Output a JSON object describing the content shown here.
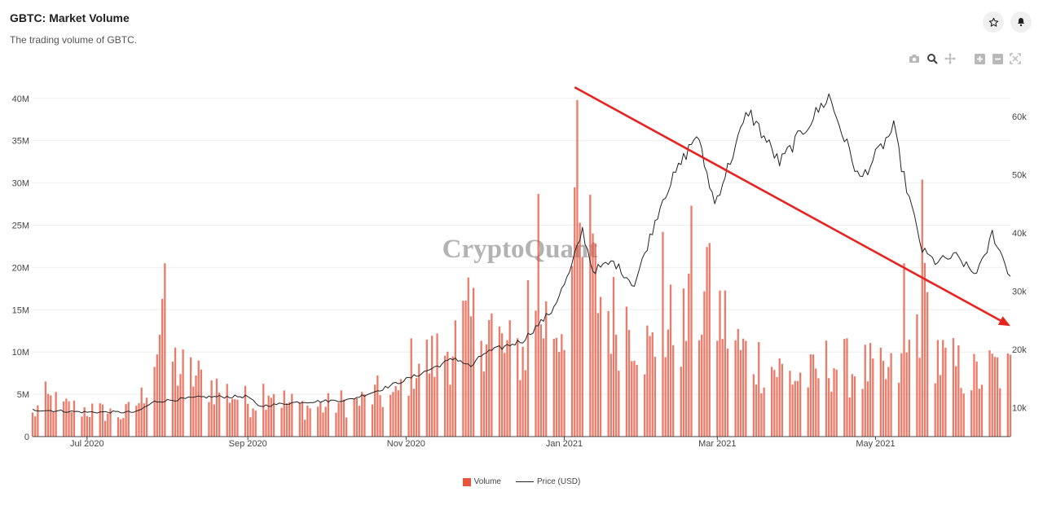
{
  "header": {
    "title": "GBTC: Market Volume",
    "subtitle": "The trading volume of GBTC."
  },
  "icons": {
    "favorite": "star-icon",
    "notify": "bell-icon",
    "camera": "camera-icon",
    "zoom": "zoom-icon",
    "pan": "pan-icon",
    "zoom_in": "plus-icon",
    "zoom_out": "minus-icon",
    "autoscale": "autoscale-icon"
  },
  "watermark": "CryptoQuant",
  "legend": {
    "volume": "Volume",
    "price": "Price (USD)"
  },
  "chart_data": {
    "type": "bar",
    "colors": {
      "volume": "#e6553f",
      "price": "#222222",
      "trend_arrow": "#e8231f"
    },
    "x_axis": {
      "start": "2020-06-10",
      "end": "2021-06-22",
      "ticks": [
        {
          "date": "2020-07-01",
          "label": "Jul 2020"
        },
        {
          "date": "2020-09-01",
          "label": "Sep 2020"
        },
        {
          "date": "2020-11-01",
          "label": "Nov 2020"
        },
        {
          "date": "2021-01-01",
          "label": "Jan 2021"
        },
        {
          "date": "2021-03-01",
          "label": "Mar 2021"
        },
        {
          "date": "2021-05-01",
          "label": "May 2021"
        }
      ]
    },
    "y_axis_left": {
      "range": [
        0,
        42000000
      ],
      "ticks": [
        {
          "v": 0,
          "label": "0"
        },
        {
          "v": 5000000,
          "label": "5M"
        },
        {
          "v": 10000000,
          "label": "10M"
        },
        {
          "v": 15000000,
          "label": "15M"
        },
        {
          "v": 20000000,
          "label": "20M"
        },
        {
          "v": 25000000,
          "label": "25M"
        },
        {
          "v": 30000000,
          "label": "30M"
        },
        {
          "v": 35000000,
          "label": "35M"
        },
        {
          "v": 40000000,
          "label": "40M"
        }
      ]
    },
    "y_axis_right": {
      "range": [
        5000,
        66000
      ],
      "ticks": [
        {
          "v": 10000,
          "label": "10k"
        },
        {
          "v": 20000,
          "label": "20k"
        },
        {
          "v": 30000,
          "label": "30k"
        },
        {
          "v": 40000,
          "label": "40k"
        },
        {
          "v": 50000,
          "label": "50k"
        },
        {
          "v": 60000,
          "label": "60k"
        }
      ]
    },
    "grid": true,
    "legend_position": "bottom-center",
    "volume_anchors": [
      [
        "2020-06-10",
        2.5
      ],
      [
        "2020-06-15",
        4.5
      ],
      [
        "2020-06-22",
        3.5
      ],
      [
        "2020-07-01",
        3.2
      ],
      [
        "2020-07-15",
        2.5
      ],
      [
        "2020-07-22",
        4.5
      ],
      [
        "2020-07-29",
        12
      ],
      [
        "2020-08-05",
        8
      ],
      [
        "2020-08-12",
        7
      ],
      [
        "2020-08-19",
        6
      ],
      [
        "2020-08-26",
        5
      ],
      [
        "2020-09-02",
        4
      ],
      [
        "2020-09-09",
        6
      ],
      [
        "2020-09-16",
        4
      ],
      [
        "2020-09-23",
        3.5
      ],
      [
        "2020-09-30",
        3.5
      ],
      [
        "2020-10-07",
        4
      ],
      [
        "2020-10-14",
        4
      ],
      [
        "2020-10-21",
        5
      ],
      [
        "2020-10-28",
        4.5
      ],
      [
        "2020-11-04",
        9
      ],
      [
        "2020-11-11",
        9
      ],
      [
        "2020-11-18",
        11
      ],
      [
        "2020-11-25",
        13
      ],
      [
        "2020-12-02",
        14
      ],
      [
        "2020-12-09",
        10
      ],
      [
        "2020-12-16",
        10
      ],
      [
        "2020-12-23",
        14
      ],
      [
        "2020-12-30",
        13
      ],
      [
        "2021-01-06",
        22
      ],
      [
        "2021-01-13",
        18
      ],
      [
        "2021-01-20",
        14
      ],
      [
        "2021-01-27",
        14
      ],
      [
        "2021-02-03",
        10
      ],
      [
        "2021-02-10",
        13
      ],
      [
        "2021-02-17",
        13
      ],
      [
        "2021-02-24",
        16
      ],
      [
        "2021-03-03",
        14
      ],
      [
        "2021-03-10",
        10
      ],
      [
        "2021-03-17",
        9
      ],
      [
        "2021-03-24",
        8
      ],
      [
        "2021-03-31",
        7
      ],
      [
        "2021-04-07",
        7
      ],
      [
        "2021-04-14",
        9
      ],
      [
        "2021-04-21",
        8
      ],
      [
        "2021-04-28",
        8
      ],
      [
        "2021-05-05",
        7
      ],
      [
        "2021-05-12",
        8
      ],
      [
        "2021-05-19",
        16
      ],
      [
        "2021-05-26",
        9
      ],
      [
        "2021-06-02",
        8
      ],
      [
        "2021-06-09",
        7
      ],
      [
        "2021-06-16",
        8
      ],
      [
        "2021-06-22",
        7.5
      ]
    ],
    "volume_peaks": [
      [
        "2020-07-31",
        20.5
      ],
      [
        "2020-08-01",
        19.2
      ],
      [
        "2020-12-22",
        28.7
      ],
      [
        "2020-12-18",
        18.5
      ],
      [
        "2021-01-02",
        40.5
      ],
      [
        "2021-01-03",
        32.7
      ],
      [
        "2021-01-06",
        39.8
      ],
      [
        "2021-01-11",
        28.6
      ],
      [
        "2021-02-08",
        24.2
      ],
      [
        "2021-02-19",
        27.3
      ],
      [
        "2021-02-26",
        22.9
      ],
      [
        "2021-05-19",
        30.4
      ],
      [
        "2021-05-12",
        20.5
      ],
      [
        "2021-06-12",
        17.7
      ]
    ],
    "volume_unit": "millions",
    "price_anchors": [
      [
        "2020-06-10",
        9600
      ],
      [
        "2020-07-01",
        9200
      ],
      [
        "2020-07-20",
        9200
      ],
      [
        "2020-07-27",
        11000
      ],
      [
        "2020-08-15",
        11800
      ],
      [
        "2020-09-01",
        11900
      ],
      [
        "2020-09-05",
        10200
      ],
      [
        "2020-09-20",
        10900
      ],
      [
        "2020-10-10",
        11300
      ],
      [
        "2020-10-21",
        12900
      ],
      [
        "2020-11-05",
        15500
      ],
      [
        "2020-11-20",
        18500
      ],
      [
        "2020-11-26",
        17000
      ],
      [
        "2020-12-01",
        19300
      ],
      [
        "2020-12-16",
        21500
      ],
      [
        "2020-12-27",
        26500
      ],
      [
        "2021-01-03",
        33000
      ],
      [
        "2021-01-08",
        40500
      ],
      [
        "2021-01-12",
        33500
      ],
      [
        "2021-01-20",
        35000
      ],
      [
        "2021-01-28",
        31000
      ],
      [
        "2021-02-08",
        46000
      ],
      [
        "2021-02-21",
        57000
      ],
      [
        "2021-02-28",
        45000
      ],
      [
        "2021-03-13",
        61000
      ],
      [
        "2021-03-25",
        52000
      ],
      [
        "2021-04-13",
        63500
      ],
      [
        "2021-04-25",
        49000
      ],
      [
        "2021-05-08",
        58000
      ],
      [
        "2021-05-12",
        49500
      ],
      [
        "2021-05-19",
        37000
      ],
      [
        "2021-05-24",
        35000
      ],
      [
        "2021-06-01",
        36000
      ],
      [
        "2021-06-08",
        33000
      ],
      [
        "2021-06-12",
        35500
      ],
      [
        "2021-06-15",
        40000
      ],
      [
        "2021-06-22",
        32500
      ]
    ],
    "trend_arrow": {
      "from": [
        "2021-01-05",
        65000
      ],
      "to": [
        "2021-06-22",
        24000
      ]
    }
  }
}
